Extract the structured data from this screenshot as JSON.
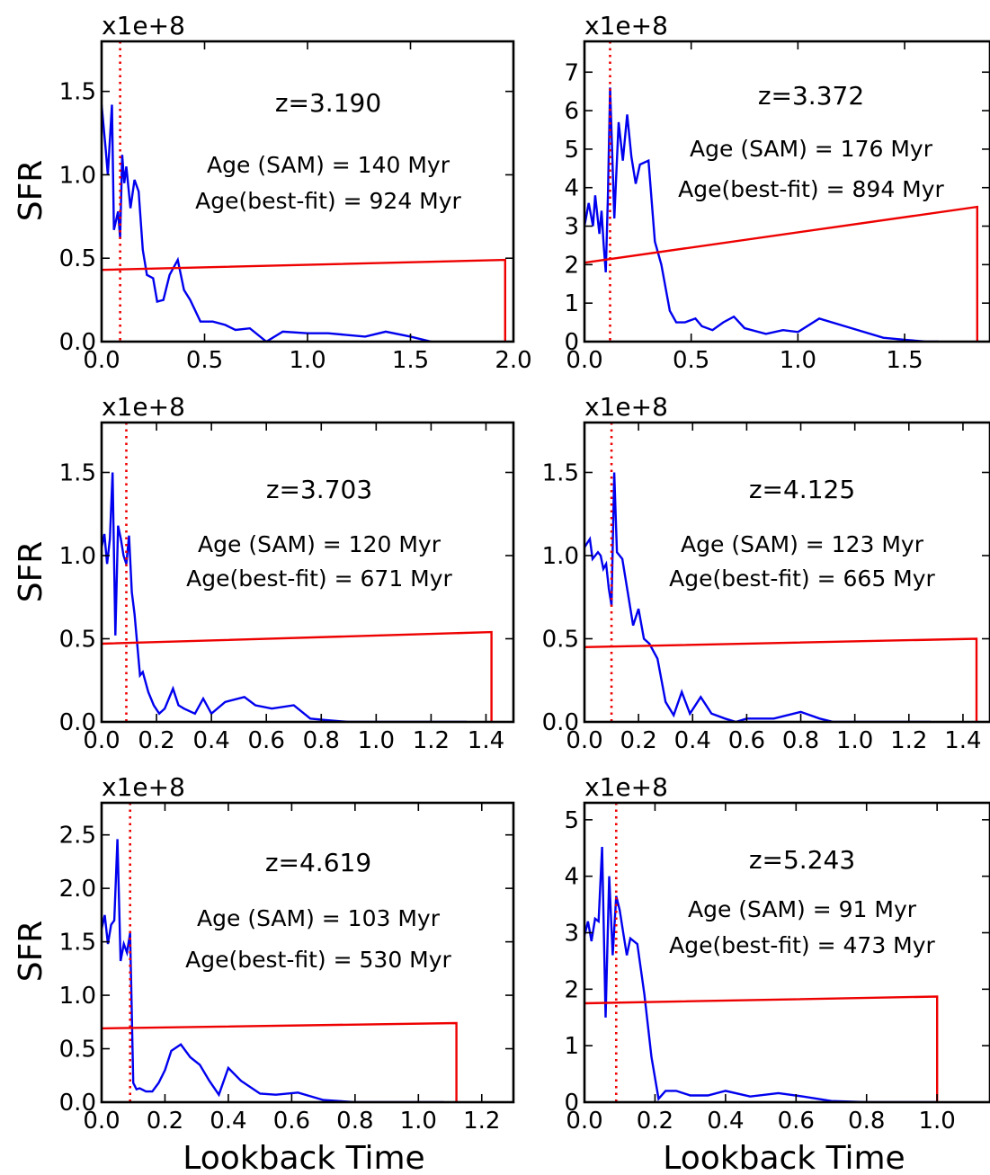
{
  "figure": {
    "ylabel": "SFR",
    "xlabel": "Lookback Time",
    "scale_label": "x1e+8",
    "colors": {
      "sam_sfh": "#0000ee",
      "best_fit": "#ee0000",
      "age_marker": "#ee0000",
      "axes": "#000000"
    }
  },
  "chart_data": [
    {
      "type": "line",
      "annotation": {
        "z": "z=3.190",
        "age_sam": "Age (SAM) = 140 Myr",
        "age_fit": "Age(best-fit) = 924 Myr"
      },
      "xlim": [
        0,
        2.0
      ],
      "ylim": [
        0,
        1.8
      ],
      "xticks": [
        0,
        0.5,
        1.0,
        1.5,
        2.0
      ],
      "xtick_labels": [
        "0.0",
        "0.5",
        "1.0",
        "1.5",
        "2.0"
      ],
      "yticks": [
        0,
        0.5,
        1.0,
        1.5
      ],
      "ytick_labels": [
        "0.0",
        "0.5",
        "1.0",
        "1.5"
      ],
      "age_marker_x": 0.09,
      "series": [
        {
          "role": "sam",
          "x": [
            0.0,
            0.02,
            0.03,
            0.05,
            0.06,
            0.08,
            0.09,
            0.1,
            0.11,
            0.12,
            0.14,
            0.16,
            0.18,
            0.2,
            0.22,
            0.25,
            0.27,
            0.3,
            0.33,
            0.37,
            0.4,
            0.43,
            0.48,
            0.54,
            0.6,
            0.65,
            0.72,
            0.8,
            0.88,
            1.0,
            1.1,
            1.28,
            1.38,
            1.5,
            1.6
          ],
          "y": [
            1.42,
            1.15,
            1.0,
            1.42,
            0.67,
            0.78,
            0.62,
            1.12,
            0.95,
            1.05,
            0.8,
            0.97,
            0.9,
            0.55,
            0.4,
            0.38,
            0.24,
            0.25,
            0.4,
            0.49,
            0.31,
            0.25,
            0.12,
            0.12,
            0.1,
            0.07,
            0.08,
            0.0,
            0.06,
            0.05,
            0.05,
            0.03,
            0.06,
            0.03,
            0.0
          ]
        },
        {
          "role": "best_fit",
          "x": [
            0.0,
            1.96,
            1.96
          ],
          "y": [
            0.43,
            0.49,
            0.0
          ]
        }
      ]
    },
    {
      "type": "line",
      "annotation": {
        "z": "z=3.372",
        "age_sam": "Age (SAM) = 176 Myr",
        "age_fit": "Age(best-fit) = 894 Myr"
      },
      "xlim": [
        0,
        1.9
      ],
      "ylim": [
        0,
        7.8
      ],
      "xticks": [
        0,
        0.5,
        1.0,
        1.5
      ],
      "xtick_labels": [
        "0.0",
        "0.5",
        "1.0",
        "1.5"
      ],
      "yticks": [
        0,
        1,
        2,
        3,
        4,
        5,
        6,
        7
      ],
      "ytick_labels": [
        "0",
        "1",
        "2",
        "3",
        "4",
        "5",
        "6",
        "7"
      ],
      "age_marker_x": 0.12,
      "series": [
        {
          "role": "sam",
          "x": [
            0.0,
            0.02,
            0.04,
            0.05,
            0.07,
            0.08,
            0.09,
            0.1,
            0.11,
            0.12,
            0.14,
            0.16,
            0.18,
            0.2,
            0.22,
            0.24,
            0.26,
            0.3,
            0.33,
            0.36,
            0.4,
            0.43,
            0.47,
            0.52,
            0.55,
            0.6,
            0.65,
            0.7,
            0.75,
            0.85,
            0.93,
            1.0,
            1.1,
            1.25,
            1.4,
            1.5,
            1.6,
            1.66
          ],
          "y": [
            3.0,
            3.6,
            3.0,
            3.8,
            2.8,
            3.4,
            2.5,
            1.8,
            3.8,
            6.6,
            3.2,
            5.7,
            4.7,
            5.9,
            4.8,
            4.1,
            4.6,
            4.7,
            2.6,
            2.0,
            0.8,
            0.5,
            0.5,
            0.6,
            0.4,
            0.3,
            0.5,
            0.65,
            0.35,
            0.2,
            0.3,
            0.25,
            0.6,
            0.35,
            0.1,
            0.05,
            0.0,
            0.0
          ]
        },
        {
          "role": "best_fit",
          "x": [
            0.0,
            1.84,
            1.84
          ],
          "y": [
            2.05,
            3.5,
            0.0
          ]
        }
      ]
    },
    {
      "type": "line",
      "annotation": {
        "z": "z=3.703",
        "age_sam": "Age (SAM) = 120 Myr",
        "age_fit": "Age(best-fit) = 671 Myr"
      },
      "xlim": [
        0,
        1.5
      ],
      "ylim": [
        0,
        1.8
      ],
      "xticks": [
        0,
        0.2,
        0.4,
        0.6,
        0.8,
        1.0,
        1.2,
        1.4
      ],
      "xtick_labels": [
        "0.0",
        "0.2",
        "0.4",
        "0.6",
        "0.8",
        "1.0",
        "1.2",
        "1.4"
      ],
      "yticks": [
        0,
        0.5,
        1.0,
        1.5
      ],
      "ytick_labels": [
        "0.0",
        "0.5",
        "1.0",
        "1.5"
      ],
      "age_marker_x": 0.09,
      "series": [
        {
          "role": "sam",
          "x": [
            0.0,
            0.01,
            0.02,
            0.03,
            0.04,
            0.05,
            0.06,
            0.07,
            0.08,
            0.09,
            0.1,
            0.11,
            0.12,
            0.14,
            0.15,
            0.17,
            0.19,
            0.21,
            0.23,
            0.26,
            0.28,
            0.3,
            0.34,
            0.37,
            0.4,
            0.45,
            0.52,
            0.56,
            0.62,
            0.7,
            0.76,
            0.82,
            0.9,
            0.97,
            1.05,
            1.15,
            1.25,
            1.33
          ],
          "y": [
            1.05,
            1.13,
            0.95,
            1.1,
            1.5,
            0.52,
            1.18,
            1.1,
            1.0,
            0.95,
            1.12,
            0.78,
            0.65,
            0.28,
            0.3,
            0.18,
            0.1,
            0.05,
            0.08,
            0.2,
            0.1,
            0.08,
            0.05,
            0.14,
            0.05,
            0.12,
            0.15,
            0.1,
            0.08,
            0.1,
            0.02,
            0.01,
            0.0,
            0.0,
            0.0,
            0.0,
            0.0,
            0.0
          ]
        },
        {
          "role": "best_fit",
          "x": [
            0.0,
            1.42,
            1.42
          ],
          "y": [
            0.47,
            0.54,
            0.0
          ]
        }
      ]
    },
    {
      "type": "line",
      "annotation": {
        "z": "z=4.125",
        "age_sam": "Age (SAM) = 123 Myr",
        "age_fit": "Age(best-fit) = 665 Myr"
      },
      "xlim": [
        0,
        1.5
      ],
      "ylim": [
        0,
        1.8
      ],
      "xticks": [
        0,
        0.2,
        0.4,
        0.6,
        0.8,
        1.0,
        1.2,
        1.4
      ],
      "xtick_labels": [
        "0.0",
        "0.2",
        "0.4",
        "0.6",
        "0.8",
        "1.0",
        "1.2",
        "1.4"
      ],
      "yticks": [
        0,
        0.5,
        1.0,
        1.5
      ],
      "ytick_labels": [
        "0.0",
        "0.5",
        "1.0",
        "1.5"
      ],
      "age_marker_x": 0.1,
      "series": [
        {
          "role": "sam",
          "x": [
            0.0,
            0.02,
            0.03,
            0.05,
            0.06,
            0.07,
            0.08,
            0.09,
            0.1,
            0.11,
            0.12,
            0.13,
            0.14,
            0.16,
            0.18,
            0.2,
            0.22,
            0.24,
            0.27,
            0.3,
            0.33,
            0.36,
            0.39,
            0.43,
            0.47,
            0.52,
            0.56,
            0.6,
            0.7,
            0.8,
            0.87,
            0.92,
            1.0,
            1.1,
            1.2,
            1.28
          ],
          "y": [
            1.05,
            1.1,
            0.98,
            1.02,
            1.0,
            0.92,
            0.95,
            0.8,
            0.7,
            1.5,
            1.02,
            1.0,
            0.98,
            0.78,
            0.58,
            0.68,
            0.5,
            0.47,
            0.38,
            0.12,
            0.04,
            0.18,
            0.05,
            0.15,
            0.05,
            0.02,
            0.0,
            0.02,
            0.02,
            0.06,
            0.02,
            0.0,
            0.0,
            0.0,
            0.0,
            0.0
          ]
        },
        {
          "role": "best_fit",
          "x": [
            0.0,
            1.45,
            1.45
          ],
          "y": [
            0.45,
            0.5,
            0.0
          ]
        }
      ]
    },
    {
      "type": "line",
      "annotation": {
        "z": "z=4.619",
        "age_sam": "Age (SAM) = 103 Myr",
        "age_fit": "Age(best-fit) = 530 Myr"
      },
      "xlim": [
        0,
        1.3
      ],
      "ylim": [
        0,
        2.8
      ],
      "xticks": [
        0,
        0.2,
        0.4,
        0.6,
        0.8,
        1.0,
        1.2
      ],
      "xtick_labels": [
        "0.0",
        "0.2",
        "0.4",
        "0.6",
        "0.8",
        "1.0",
        "1.2"
      ],
      "yticks": [
        0,
        0.5,
        1.0,
        1.5,
        2.0,
        2.5
      ],
      "ytick_labels": [
        "0.0",
        "0.5",
        "1.0",
        "1.5",
        "2.0",
        "2.5"
      ],
      "age_marker_x": 0.09,
      "series": [
        {
          "role": "sam",
          "x": [
            0.0,
            0.01,
            0.02,
            0.03,
            0.04,
            0.05,
            0.06,
            0.07,
            0.08,
            0.09,
            0.1,
            0.11,
            0.12,
            0.14,
            0.16,
            0.18,
            0.2,
            0.22,
            0.25,
            0.28,
            0.31,
            0.34,
            0.37,
            0.4,
            0.44,
            0.5,
            0.55,
            0.62,
            0.7,
            0.8,
            0.9,
            1.0,
            1.08
          ],
          "y": [
            1.62,
            1.75,
            1.48,
            1.66,
            1.7,
            2.46,
            1.32,
            1.48,
            1.4,
            1.58,
            0.18,
            0.12,
            0.13,
            0.1,
            0.1,
            0.18,
            0.3,
            0.48,
            0.54,
            0.42,
            0.35,
            0.2,
            0.07,
            0.32,
            0.2,
            0.08,
            0.07,
            0.09,
            0.02,
            0.0,
            0.0,
            0.0,
            0.0
          ]
        },
        {
          "role": "best_fit",
          "x": [
            0.0,
            1.12,
            1.12
          ],
          "y": [
            0.69,
            0.74,
            0.0
          ]
        }
      ]
    },
    {
      "type": "line",
      "annotation": {
        "z": "z=5.243",
        "age_sam": "Age (SAM) = 91 Myr",
        "age_fit": "Age(best-fit) = 473 Myr"
      },
      "xlim": [
        0,
        1.15
      ],
      "ylim": [
        0,
        5.3
      ],
      "xticks": [
        0,
        0.2,
        0.4,
        0.6,
        0.8,
        1.0
      ],
      "xtick_labels": [
        "0.0",
        "0.2",
        "0.4",
        "0.6",
        "0.8",
        "1.0"
      ],
      "yticks": [
        0,
        1,
        2,
        3,
        4,
        5
      ],
      "ytick_labels": [
        "0",
        "1",
        "2",
        "3",
        "4",
        "5"
      ],
      "age_marker_x": 0.09,
      "series": [
        {
          "role": "sam",
          "x": [
            0.0,
            0.01,
            0.02,
            0.03,
            0.04,
            0.05,
            0.06,
            0.07,
            0.08,
            0.09,
            0.1,
            0.11,
            0.12,
            0.13,
            0.15,
            0.17,
            0.19,
            0.21,
            0.23,
            0.26,
            0.3,
            0.35,
            0.4,
            0.47,
            0.55,
            0.62,
            0.7,
            0.8,
            0.9,
            1.0
          ],
          "y": [
            2.95,
            3.2,
            2.85,
            3.25,
            3.2,
            4.52,
            1.5,
            4.0,
            2.6,
            3.65,
            3.4,
            3.0,
            2.6,
            2.9,
            2.8,
            1.9,
            0.8,
            0.06,
            0.2,
            0.2,
            0.12,
            0.12,
            0.2,
            0.1,
            0.16,
            0.1,
            0.02,
            0.0,
            0.0,
            0.0
          ]
        },
        {
          "role": "best_fit",
          "x": [
            0.0,
            1.0,
            1.0
          ],
          "y": [
            1.75,
            1.87,
            0.0
          ]
        }
      ]
    }
  ]
}
